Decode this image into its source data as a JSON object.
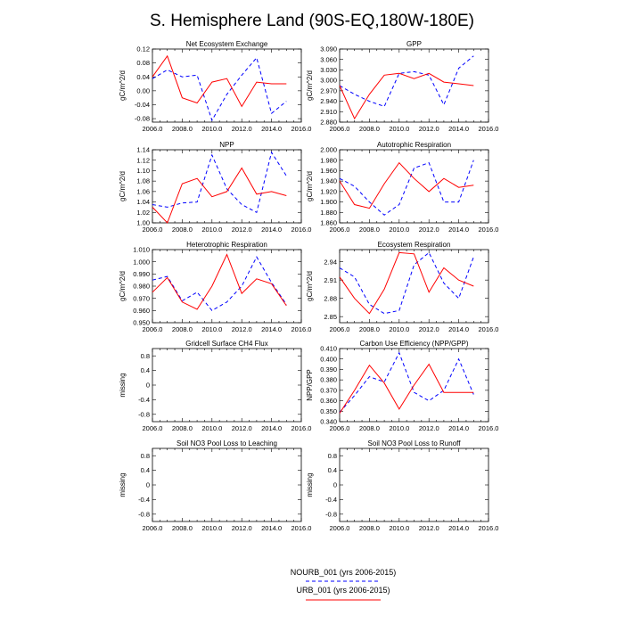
{
  "title": "S. Hemisphere Land (90S-EQ,180W-180E)",
  "colors": {
    "nourb": "#0000ff",
    "urb": "#ff0000",
    "axis": "#000000"
  },
  "legend": [
    {
      "label": "NOURB_001 (yrs 2006-2015)",
      "series": "nourb",
      "style": "dashed"
    },
    {
      "label": "URB_001 (yrs 2006-2015)",
      "series": "urb",
      "style": "solid"
    }
  ],
  "chart_data": [
    {
      "type": "line",
      "title": "Net Ecosystem Exchange",
      "ylabel": "gC/m^2/d",
      "xlim": [
        2006,
        2016
      ],
      "xticks": [
        2006,
        2008,
        2010,
        2012,
        2014,
        2016
      ],
      "xtick_labels": [
        "2006.0",
        "2008.0",
        "2010.0",
        "2012.0",
        "2014.0",
        "2016.0"
      ],
      "ylim": [
        -0.09,
        0.12
      ],
      "yticks": [
        -0.08,
        -0.04,
        0.0,
        0.04,
        0.08,
        0.12
      ],
      "ytick_labels": [
        "-0.08",
        "-0.04",
        "0.00",
        "0.04",
        "0.08",
        "0.12"
      ],
      "x": [
        2006,
        2007,
        2008,
        2009,
        2010,
        2011,
        2012,
        2013,
        2014,
        2015
      ],
      "series": [
        {
          "name": "NOURB_001",
          "key": "nourb",
          "values": [
            0.035,
            0.06,
            0.04,
            0.045,
            -0.085,
            -0.01,
            0.045,
            0.095,
            -0.065,
            -0.03
          ]
        },
        {
          "name": "URB_001",
          "key": "urb",
          "values": [
            0.04,
            0.1,
            -0.02,
            -0.035,
            0.025,
            0.035,
            -0.045,
            0.025,
            0.02,
            0.02
          ]
        }
      ]
    },
    {
      "type": "line",
      "title": "GPP",
      "ylabel": "gC/m^2/d",
      "xlim": [
        2006,
        2016
      ],
      "xticks": [
        2006,
        2008,
        2010,
        2012,
        2014,
        2016
      ],
      "xtick_labels": [
        "2006.0",
        "2008.0",
        "2010.0",
        "2012.0",
        "2014.0",
        "2016.0"
      ],
      "ylim": [
        2.88,
        3.09
      ],
      "yticks": [
        2.88,
        2.91,
        2.94,
        2.97,
        3.0,
        3.03,
        3.06,
        3.09
      ],
      "ytick_labels": [
        "2.880",
        "2.910",
        "2.940",
        "2.970",
        "3.000",
        "3.030",
        "3.060",
        "3.090"
      ],
      "x": [
        2006,
        2007,
        2008,
        2009,
        2010,
        2011,
        2012,
        2013,
        2014,
        2015
      ],
      "series": [
        {
          "name": "NOURB_001",
          "key": "nourb",
          "values": [
            2.985,
            2.96,
            2.94,
            2.925,
            3.02,
            3.025,
            3.015,
            2.93,
            3.035,
            3.07
          ]
        },
        {
          "name": "URB_001",
          "key": "urb",
          "values": [
            2.985,
            2.89,
            2.96,
            3.015,
            3.02,
            3.005,
            3.02,
            2.995,
            2.99,
            2.985
          ]
        }
      ]
    },
    {
      "type": "line",
      "title": "NPP",
      "ylabel": "gC/m^2/d",
      "xlim": [
        2006,
        2016
      ],
      "xticks": [
        2006,
        2008,
        2010,
        2012,
        2014,
        2016
      ],
      "xtick_labels": [
        "2006.0",
        "2008.0",
        "2010.0",
        "2012.0",
        "2014.0",
        "2016.0"
      ],
      "ylim": [
        1.0,
        1.14
      ],
      "yticks": [
        1.0,
        1.02,
        1.04,
        1.06,
        1.08,
        1.1,
        1.12,
        1.14
      ],
      "ytick_labels": [
        "1.00",
        "1.02",
        "1.04",
        "1.06",
        "1.08",
        "1.10",
        "1.12",
        "1.14"
      ],
      "x": [
        2006,
        2007,
        2008,
        2009,
        2010,
        2011,
        2012,
        2013,
        2014,
        2015
      ],
      "series": [
        {
          "name": "NOURB_001",
          "key": "nourb",
          "values": [
            1.035,
            1.03,
            1.038,
            1.04,
            1.13,
            1.065,
            1.035,
            1.02,
            1.135,
            1.09
          ]
        },
        {
          "name": "URB_001",
          "key": "urb",
          "values": [
            1.03,
            1.0,
            1.075,
            1.085,
            1.05,
            1.06,
            1.105,
            1.055,
            1.06,
            1.052
          ]
        }
      ]
    },
    {
      "type": "line",
      "title": "Autotrophic Respiration",
      "ylabel": "gC/m^2/d",
      "xlim": [
        2006,
        2016
      ],
      "xticks": [
        2006,
        2008,
        2010,
        2012,
        2014,
        2016
      ],
      "xtick_labels": [
        "2006.0",
        "2008.0",
        "2010.0",
        "2012.0",
        "2014.0",
        "2016.0"
      ],
      "ylim": [
        1.86,
        2.0
      ],
      "yticks": [
        1.86,
        1.88,
        1.9,
        1.92,
        1.94,
        1.96,
        1.98,
        2.0
      ],
      "ytick_labels": [
        "1.860",
        "1.880",
        "1.900",
        "1.920",
        "1.940",
        "1.960",
        "1.980",
        "2.000"
      ],
      "x": [
        2006,
        2007,
        2008,
        2009,
        2010,
        2011,
        2012,
        2013,
        2014,
        2015
      ],
      "series": [
        {
          "name": "NOURB_001",
          "key": "nourb",
          "values": [
            1.945,
            1.93,
            1.9,
            1.875,
            1.895,
            1.965,
            1.975,
            1.9,
            1.9,
            1.98
          ]
        },
        {
          "name": "URB_001",
          "key": "urb",
          "values": [
            1.94,
            1.895,
            1.888,
            1.935,
            1.975,
            1.945,
            1.92,
            1.945,
            1.928,
            1.932
          ]
        }
      ]
    },
    {
      "type": "line",
      "title": "Heterotrophic Respiration",
      "ylabel": "gC/m^2/d",
      "xlim": [
        2006,
        2016
      ],
      "xticks": [
        2006,
        2008,
        2010,
        2012,
        2014,
        2016
      ],
      "xtick_labels": [
        "2006.0",
        "2008.0",
        "2010.0",
        "2012.0",
        "2014.0",
        "2016.0"
      ],
      "ylim": [
        0.95,
        1.01
      ],
      "yticks": [
        0.95,
        0.96,
        0.97,
        0.98,
        0.99,
        1.0,
        1.01
      ],
      "ytick_labels": [
        "0.950",
        "0.960",
        "0.970",
        "0.980",
        "0.990",
        "1.000",
        "1.010"
      ],
      "x": [
        2006,
        2007,
        2008,
        2009,
        2010,
        2011,
        2012,
        2013,
        2014,
        2015
      ],
      "series": [
        {
          "name": "NOURB_001",
          "key": "nourb",
          "values": [
            0.985,
            0.988,
            0.968,
            0.975,
            0.96,
            0.967,
            0.98,
            1.004,
            0.983,
            0.965
          ]
        },
        {
          "name": "URB_001",
          "key": "urb",
          "values": [
            0.975,
            0.987,
            0.967,
            0.961,
            0.98,
            1.006,
            0.974,
            0.986,
            0.982,
            0.964
          ]
        }
      ]
    },
    {
      "type": "line",
      "title": "Ecosystem Respiration",
      "ylabel": "gC/m^2/d",
      "xlim": [
        2006,
        2016
      ],
      "xticks": [
        2006,
        2008,
        2010,
        2012,
        2014,
        2016
      ],
      "xtick_labels": [
        "2006.0",
        "2008.0",
        "2010.0",
        "2012.0",
        "2014.0",
        "2016.0"
      ],
      "ylim": [
        2.84,
        2.96
      ],
      "yticks": [
        2.85,
        2.88,
        2.91,
        2.94
      ],
      "ytick_labels": [
        "2.85",
        "2.88",
        "2.91",
        "2.94"
      ],
      "x": [
        2006,
        2007,
        2008,
        2009,
        2010,
        2011,
        2012,
        2013,
        2014,
        2015
      ],
      "series": [
        {
          "name": "NOURB_001",
          "key": "nourb",
          "values": [
            2.93,
            2.915,
            2.87,
            2.855,
            2.86,
            2.935,
            2.955,
            2.905,
            2.88,
            2.948
          ]
        },
        {
          "name": "URB_001",
          "key": "urb",
          "values": [
            2.915,
            2.88,
            2.855,
            2.895,
            2.955,
            2.953,
            2.89,
            2.93,
            2.91,
            2.9
          ]
        }
      ]
    },
    {
      "type": "line",
      "title": "Gridcell Surface CH4 Flux",
      "ylabel": "missing",
      "xlim": [
        2006,
        2016
      ],
      "xticks": [
        2006,
        2008,
        2010,
        2012,
        2014,
        2016
      ],
      "xtick_labels": [
        "2006.0",
        "2008.0",
        "2010.0",
        "2012.0",
        "2014.0",
        "2016.0"
      ],
      "ylim": [
        -1.0,
        1.0
      ],
      "yticks": [
        -0.8,
        -0.4,
        0.0,
        0.4,
        0.8
      ],
      "ytick_labels": [
        "-0.8",
        "-0.4",
        "0",
        "0.4",
        "0.8"
      ],
      "x": [],
      "series": []
    },
    {
      "type": "line",
      "title": "Carbon Use Efficiency (NPP/GPP)",
      "ylabel": "NPP/GPP",
      "xlim": [
        2006,
        2016
      ],
      "xticks": [
        2006,
        2008,
        2010,
        2012,
        2014,
        2016
      ],
      "xtick_labels": [
        "2006.0",
        "2008.0",
        "2010.0",
        "2012.0",
        "2014.0",
        "2016.0"
      ],
      "ylim": [
        0.34,
        0.41
      ],
      "yticks": [
        0.34,
        0.35,
        0.36,
        0.37,
        0.38,
        0.39,
        0.4,
        0.41
      ],
      "ytick_labels": [
        "0.340",
        "0.350",
        "0.360",
        "0.370",
        "0.380",
        "0.390",
        "0.400",
        "0.410"
      ],
      "x": [
        2006,
        2007,
        2008,
        2009,
        2010,
        2011,
        2012,
        2013,
        2014,
        2015
      ],
      "series": [
        {
          "name": "NOURB_001",
          "key": "nourb",
          "values": [
            0.349,
            0.365,
            0.383,
            0.378,
            0.406,
            0.368,
            0.36,
            0.37,
            0.4,
            0.366
          ]
        },
        {
          "name": "URB_001",
          "key": "urb",
          "values": [
            0.348,
            0.37,
            0.394,
            0.377,
            0.352,
            0.375,
            0.395,
            0.368,
            0.368,
            0.368
          ]
        }
      ]
    },
    {
      "type": "line",
      "title": "Soil NO3 Pool Loss to Leaching",
      "ylabel": "missing",
      "xlim": [
        2006,
        2016
      ],
      "xticks": [
        2006,
        2008,
        2010,
        2012,
        2014,
        2016
      ],
      "xtick_labels": [
        "2006.0",
        "2008.0",
        "2010.0",
        "2012.0",
        "2014.0",
        "2016.0"
      ],
      "ylim": [
        -1.0,
        1.0
      ],
      "yticks": [
        -0.8,
        -0.4,
        0.0,
        0.4,
        0.8
      ],
      "ytick_labels": [
        "-0.8",
        "-0.4",
        "0",
        "0.4",
        "0.8"
      ],
      "x": [],
      "series": []
    },
    {
      "type": "line",
      "title": "Soil NO3 Pool Loss to Runoff",
      "ylabel": "missing",
      "xlim": [
        2006,
        2016
      ],
      "xticks": [
        2006,
        2008,
        2010,
        2012,
        2014,
        2016
      ],
      "xtick_labels": [
        "2006.0",
        "2008.0",
        "2010.0",
        "2012.0",
        "2014.0",
        "2016.0"
      ],
      "ylim": [
        -1.0,
        1.0
      ],
      "yticks": [
        -0.8,
        -0.4,
        0.0,
        0.4,
        0.8
      ],
      "ytick_labels": [
        "-0.8",
        "-0.4",
        "0",
        "0.4",
        "0.8"
      ],
      "x": [],
      "series": []
    }
  ]
}
